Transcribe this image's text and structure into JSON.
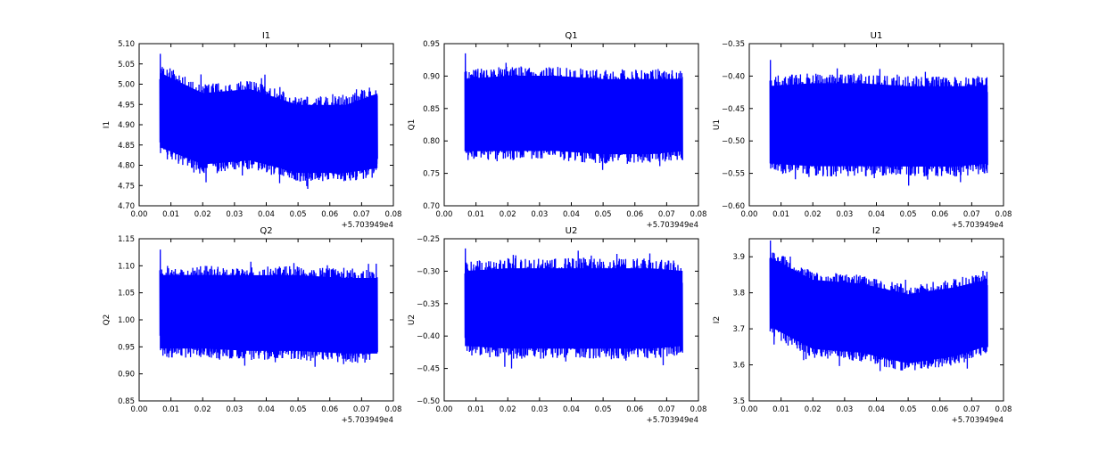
{
  "chart_data": [
    {
      "type": "line",
      "title": "I1",
      "ylabel": "I1",
      "x_offset_label": "+5.703949e4",
      "xlim": [
        0.0,
        0.08
      ],
      "ylim": [
        4.7,
        5.1
      ],
      "xticks": [
        "0.00",
        "0.01",
        "0.02",
        "0.03",
        "0.04",
        "0.05",
        "0.06",
        "0.07",
        "0.08"
      ],
      "yticks": [
        "4.70",
        "4.75",
        "4.80",
        "4.85",
        "4.90",
        "4.95",
        "5.00",
        "5.05",
        "5.10"
      ],
      "x_range": [
        0.0065,
        0.075
      ],
      "envelope": {
        "x": [
          0.007,
          0.02,
          0.035,
          0.05,
          0.065,
          0.075
        ],
        "upper": [
          5.05,
          5.0,
          5.01,
          4.97,
          4.97,
          5.0
        ],
        "lower": [
          4.82,
          4.78,
          4.79,
          4.76,
          4.76,
          4.77
        ]
      },
      "extremes": {
        "max": 5.075,
        "min": 4.7
      },
      "color": "#0000ff"
    },
    {
      "type": "line",
      "title": "Q1",
      "ylabel": "Q1",
      "x_offset_label": "+5.703949e4",
      "xlim": [
        0.0,
        0.08
      ],
      "ylim": [
        0.7,
        0.95
      ],
      "xticks": [
        "0.00",
        "0.01",
        "0.02",
        "0.03",
        "0.04",
        "0.05",
        "0.06",
        "0.07",
        "0.08"
      ],
      "yticks": [
        "0.70",
        "0.75",
        "0.80",
        "0.85",
        "0.90",
        "0.95"
      ],
      "x_range": [
        0.0065,
        0.075
      ],
      "envelope": {
        "x": [
          0.007,
          0.02,
          0.035,
          0.05,
          0.065,
          0.075
        ],
        "upper": [
          0.91,
          0.915,
          0.915,
          0.91,
          0.91,
          0.91
        ],
        "lower": [
          0.77,
          0.77,
          0.77,
          0.765,
          0.765,
          0.77
        ]
      },
      "extremes": {
        "max": 0.935,
        "min": 0.745
      },
      "color": "#0000ff"
    },
    {
      "type": "line",
      "title": "U1",
      "ylabel": "U1",
      "x_offset_label": "+5.703949e4",
      "xlim": [
        0.0,
        0.08
      ],
      "ylim": [
        -0.6,
        -0.35
      ],
      "xticks": [
        "0.00",
        "0.01",
        "0.02",
        "0.03",
        "0.04",
        "0.05",
        "0.06",
        "0.07",
        "0.08"
      ],
      "yticks": [
        "−0.60",
        "−0.55",
        "−0.50",
        "−0.45",
        "−0.40",
        "−0.35"
      ],
      "x_range": [
        0.0065,
        0.075
      ],
      "envelope": {
        "x": [
          0.007,
          0.02,
          0.035,
          0.05,
          0.065,
          0.075
        ],
        "upper": [
          -0.4,
          -0.395,
          -0.395,
          -0.4,
          -0.4,
          -0.4
        ],
        "lower": [
          -0.55,
          -0.555,
          -0.555,
          -0.555,
          -0.555,
          -0.55
        ]
      },
      "extremes": {
        "max": -0.375,
        "min": -0.59
      },
      "color": "#0000ff"
    },
    {
      "type": "line",
      "title": "Q2",
      "ylabel": "Q2",
      "x_offset_label": "+5.703949e4",
      "xlim": [
        0.0,
        0.08
      ],
      "ylim": [
        0.85,
        1.15
      ],
      "xticks": [
        "0.00",
        "0.01",
        "0.02",
        "0.03",
        "0.04",
        "0.05",
        "0.06",
        "0.07",
        "0.08"
      ],
      "yticks": [
        "0.85",
        "0.90",
        "0.95",
        "1.00",
        "1.05",
        "1.10",
        "1.15"
      ],
      "x_range": [
        0.0065,
        0.075
      ],
      "envelope": {
        "x": [
          0.007,
          0.02,
          0.035,
          0.05,
          0.065,
          0.075
        ],
        "upper": [
          1.1,
          1.1,
          1.1,
          1.1,
          1.095,
          1.095
        ],
        "lower": [
          0.93,
          0.93,
          0.925,
          0.925,
          0.92,
          0.92
        ]
      },
      "extremes": {
        "max": 1.13,
        "min": 0.895
      },
      "color": "#0000ff"
    },
    {
      "type": "line",
      "title": "U2",
      "ylabel": "U2",
      "x_offset_label": "+5.703949e4",
      "xlim": [
        0.0,
        0.08
      ],
      "ylim": [
        -0.5,
        -0.25
      ],
      "xticks": [
        "0.00",
        "0.01",
        "0.02",
        "0.03",
        "0.04",
        "0.05",
        "0.06",
        "0.07",
        "0.08"
      ],
      "yticks": [
        "−0.50",
        "−0.45",
        "−0.40",
        "−0.35",
        "−0.30",
        "−0.25"
      ],
      "x_range": [
        0.0065,
        0.075
      ],
      "envelope": {
        "x": [
          0.007,
          0.02,
          0.035,
          0.05,
          0.065,
          0.075
        ],
        "upper": [
          -0.285,
          -0.28,
          -0.28,
          -0.28,
          -0.28,
          -0.285
        ],
        "lower": [
          -0.43,
          -0.435,
          -0.435,
          -0.435,
          -0.435,
          -0.43
        ]
      },
      "extremes": {
        "max": -0.265,
        "min": -0.47
      },
      "color": "#0000ff"
    },
    {
      "type": "line",
      "title": "I2",
      "ylabel": "I2",
      "x_offset_label": "+5.703949e4",
      "xlim": [
        0.0,
        0.08
      ],
      "ylim": [
        3.5,
        3.95
      ],
      "xticks": [
        "0.00",
        "0.01",
        "0.02",
        "0.03",
        "0.04",
        "0.05",
        "0.06",
        "0.07",
        "0.08"
      ],
      "yticks": [
        "3.5",
        "3.6",
        "3.7",
        "3.8",
        "3.9"
      ],
      "ytick_values": [
        3.5,
        3.6,
        3.7,
        3.8,
        3.9
      ],
      "x_range": [
        0.0065,
        0.075
      ],
      "envelope": {
        "x": [
          0.007,
          0.02,
          0.035,
          0.05,
          0.065,
          0.075
        ],
        "upper": [
          3.92,
          3.86,
          3.85,
          3.82,
          3.84,
          3.86
        ],
        "lower": [
          3.68,
          3.62,
          3.61,
          3.58,
          3.6,
          3.63
        ]
      },
      "extremes": {
        "max": 3.945,
        "min": 3.545
      },
      "color": "#0000ff"
    }
  ]
}
